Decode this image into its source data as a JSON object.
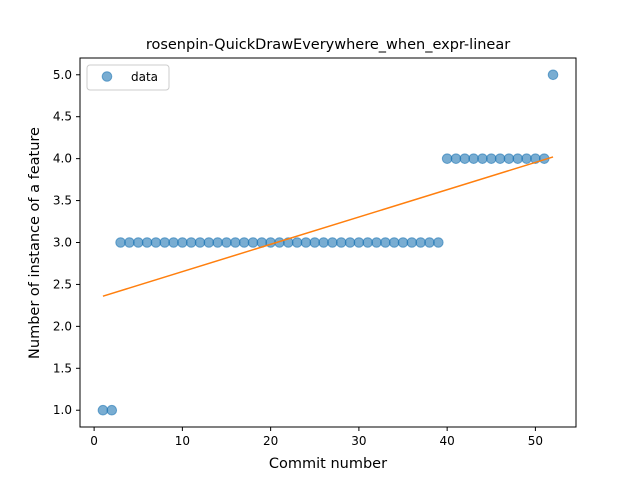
{
  "chart_data": {
    "type": "scatter",
    "title": "rosenpin-QuickDrawEverywhere_when_expr-linear",
    "xlabel": "Commit number",
    "ylabel": "Number of instance of a feature",
    "xlim": [
      -1.6,
      54.6
    ],
    "ylim": [
      0.8,
      5.2
    ],
    "xticks": [
      0,
      10,
      20,
      30,
      40,
      50
    ],
    "yticks": [
      1.0,
      1.5,
      2.0,
      2.5,
      3.0,
      3.5,
      4.0,
      4.5,
      5.0
    ],
    "xtick_labels": [
      "0",
      "10",
      "20",
      "30",
      "40",
      "50"
    ],
    "ytick_labels": [
      "1.0",
      "1.5",
      "2.0",
      "2.5",
      "3.0",
      "3.5",
      "4.0",
      "4.5",
      "5.0"
    ],
    "grid": false,
    "legend": {
      "position": "top-left",
      "entries": [
        "data"
      ]
    },
    "series": [
      {
        "name": "data",
        "kind": "scatter",
        "color": "#1f77b4",
        "x": [
          1,
          2,
          3,
          4,
          5,
          6,
          7,
          8,
          9,
          10,
          11,
          12,
          13,
          14,
          15,
          16,
          17,
          18,
          19,
          20,
          21,
          22,
          23,
          24,
          25,
          26,
          27,
          28,
          29,
          30,
          31,
          32,
          33,
          34,
          35,
          36,
          37,
          38,
          39,
          40,
          41,
          42,
          43,
          44,
          45,
          46,
          47,
          48,
          49,
          50,
          51,
          52
        ],
        "y": [
          1,
          1,
          3,
          3,
          3,
          3,
          3,
          3,
          3,
          3,
          3,
          3,
          3,
          3,
          3,
          3,
          3,
          3,
          3,
          3,
          3,
          3,
          3,
          3,
          3,
          3,
          3,
          3,
          3,
          3,
          3,
          3,
          3,
          3,
          3,
          3,
          3,
          3,
          3,
          4,
          4,
          4,
          4,
          4,
          4,
          4,
          4,
          4,
          4,
          4,
          4,
          5
        ]
      },
      {
        "kind": "line",
        "color": "#ff7f0e",
        "x": [
          1,
          52
        ],
        "y": [
          2.36,
          4.02
        ]
      }
    ]
  }
}
